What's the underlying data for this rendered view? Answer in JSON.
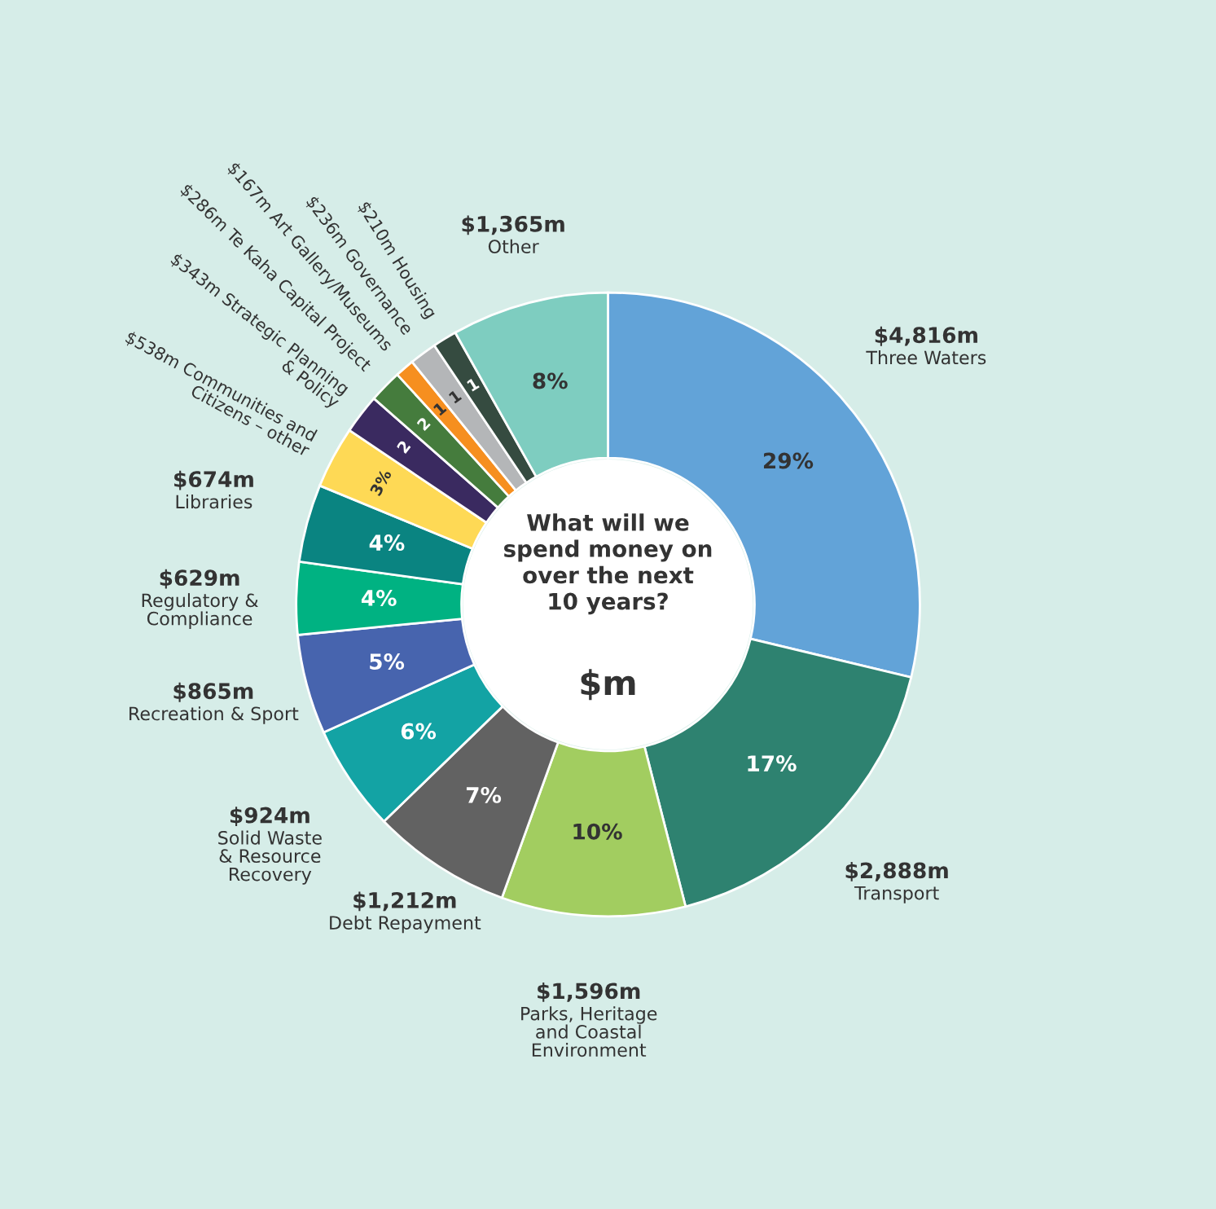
{
  "chart_data": {
    "type": "donut",
    "title": "What will we\nspend money on\nover the next\n10 years?",
    "subtitle": "$m",
    "categories": [
      "Three Waters",
      "Transport",
      "Parks, Heritage\nand Coastal\nEnvironment",
      "Debt Repayment",
      "Solid Waste\n& Resource\nRecovery",
      "Recreation & Sport",
      "Regulatory &\nCompliance",
      "Libraries",
      "Communities and\nCitizens – other",
      "Strategic Planning\n& Policy",
      "Te Kaha Capital Project",
      "Art Gallery/Museums",
      "Governance",
      "Housing",
      "Other"
    ],
    "values": [
      4816,
      2888,
      1596,
      1212,
      924,
      865,
      629,
      674,
      538,
      343,
      286,
      167,
      236,
      210,
      1365
    ],
    "value_labels": [
      "$4,816m",
      "$2,888m",
      "$1,596m",
      "$1,212m",
      "$924m",
      "$865m",
      "$629m",
      "$674m",
      "$538m",
      "$343m",
      "$286m",
      "$167m",
      "$236m",
      "$210m",
      "$1,365m"
    ],
    "colors": [
      "#62a3d8",
      "#2e8270",
      "#a2cd60",
      "#626262",
      "#13a3a4",
      "#4764ae",
      "#00b282",
      "#0a8481",
      "#fed955",
      "#3a2a60",
      "#457c3d",
      "#f68f1f",
      "#b4b6b8",
      "#354b40",
      "#7ecdc0"
    ],
    "annotations": [
      "29%",
      "17%",
      "10%",
      "7%",
      "6%",
      "5%",
      "4%",
      "4%",
      "3%",
      "2",
      "2",
      "1",
      "1",
      "1",
      "8%"
    ],
    "legend": false
  }
}
